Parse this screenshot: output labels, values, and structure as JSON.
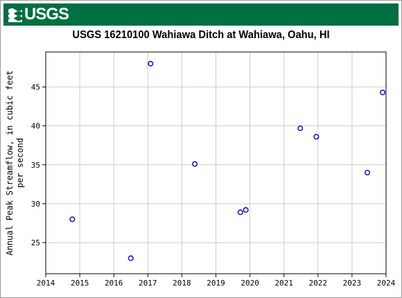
{
  "header": {
    "logo_text": "USGS"
  },
  "chart_data": {
    "type": "scatter",
    "title": "USGS 16210100 Wahiawa Ditch at Wahiawa, Oahu, HI",
    "xlabel": "",
    "ylabel_lines": [
      "Annual Peak Streamflow, in cubic feet",
      "per second"
    ],
    "xlim": [
      2014,
      2024
    ],
    "ylim": [
      21,
      49.5
    ],
    "xticks": [
      2014,
      2015,
      2016,
      2017,
      2018,
      2019,
      2020,
      2021,
      2022,
      2023,
      2024
    ],
    "yticks": [
      25,
      30,
      35,
      40,
      45
    ],
    "grid": true,
    "marker_color": "#0000cc",
    "points": [
      {
        "x": 2014.78,
        "y": 28.0
      },
      {
        "x": 2016.5,
        "y": 23.0
      },
      {
        "x": 2017.08,
        "y": 48.0
      },
      {
        "x": 2018.38,
        "y": 35.1
      },
      {
        "x": 2019.72,
        "y": 28.9
      },
      {
        "x": 2019.88,
        "y": 29.2
      },
      {
        "x": 2021.48,
        "y": 39.7
      },
      {
        "x": 2021.95,
        "y": 38.6
      },
      {
        "x": 2023.45,
        "y": 34.0
      },
      {
        "x": 2023.9,
        "y": 44.3
      }
    ]
  }
}
